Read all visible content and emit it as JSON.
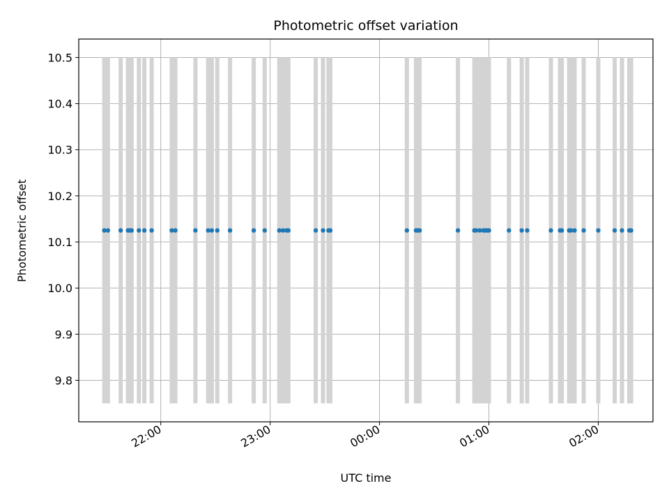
{
  "chart_data": {
    "type": "scatter",
    "title": "Photometric offset variation",
    "xlabel": "UTC time",
    "ylabel": "Photometric offset",
    "x_axis_kind": "time",
    "xlim": [
      "21:15",
      "02:30"
    ],
    "ylim": [
      9.71,
      10.54
    ],
    "x_ticks": [
      "22:00",
      "23:00",
      "00:00",
      "01:00",
      "02:00"
    ],
    "y_ticks": [
      9.8,
      9.9,
      10.0,
      10.1,
      10.2,
      10.3,
      10.4,
      10.5
    ],
    "grid": true,
    "colors": {
      "points": "#1f77b4",
      "spans": "#d3d3d3",
      "grid": "#b0b0b0",
      "axes": "#000000"
    },
    "series": [
      {
        "kind": "points",
        "x": [
          "21:29",
          "21:31",
          "21:38",
          "21:42",
          "21:43",
          "21:44",
          "21:48",
          "21:51",
          "21:55",
          "22:06",
          "22:08",
          "22:19",
          "22:26",
          "22:28",
          "22:31",
          "22:38",
          "22:51",
          "22:57",
          "23:05",
          "23:07",
          "23:09",
          "23:10",
          "23:25",
          "23:29",
          "23:32",
          "23:33",
          "00:15",
          "00:20",
          "00:21",
          "00:22",
          "00:43",
          "00:52",
          "00:53",
          "00:55",
          "00:57",
          "00:58",
          "00:59",
          "01:00",
          "01:11",
          "01:18",
          "01:21",
          "01:34",
          "01:39",
          "01:40",
          "01:44",
          "01:45",
          "01:47",
          "01:52",
          "02:00",
          "02:09",
          "02:13",
          "02:17",
          "02:18"
        ],
        "y": [
          10.125,
          10.125,
          10.125,
          10.125,
          10.125,
          10.125,
          10.125,
          10.125,
          10.125,
          10.125,
          10.125,
          10.125,
          10.125,
          10.125,
          10.125,
          10.125,
          10.125,
          10.125,
          10.125,
          10.125,
          10.125,
          10.125,
          10.125,
          10.125,
          10.125,
          10.125,
          10.125,
          10.125,
          10.125,
          10.125,
          10.125,
          10.125,
          10.125,
          10.125,
          10.125,
          10.125,
          10.125,
          10.125,
          10.125,
          10.125,
          10.125,
          10.125,
          10.125,
          10.125,
          10.125,
          10.125,
          10.125,
          10.125,
          10.125,
          10.125,
          10.125,
          10.125,
          10.125
        ]
      },
      {
        "kind": "vertical-spans",
        "x": [
          "21:29",
          "21:31",
          "21:38",
          "21:42",
          "21:43",
          "21:44",
          "21:48",
          "21:51",
          "21:55",
          "22:06",
          "22:08",
          "22:19",
          "22:26",
          "22:28",
          "22:31",
          "22:38",
          "22:51",
          "22:57",
          "23:05",
          "23:07",
          "23:09",
          "23:10",
          "23:25",
          "23:29",
          "23:32",
          "23:33",
          "00:15",
          "00:20",
          "00:21",
          "00:22",
          "00:43",
          "00:52",
          "00:53",
          "00:55",
          "00:57",
          "00:58",
          "00:59",
          "01:00",
          "01:11",
          "01:18",
          "01:21",
          "01:34",
          "01:39",
          "01:40",
          "01:44",
          "01:45",
          "01:47",
          "01:52",
          "02:00",
          "02:09",
          "02:13",
          "02:17",
          "02:18"
        ],
        "y_range": [
          9.75,
          10.5
        ]
      }
    ]
  }
}
